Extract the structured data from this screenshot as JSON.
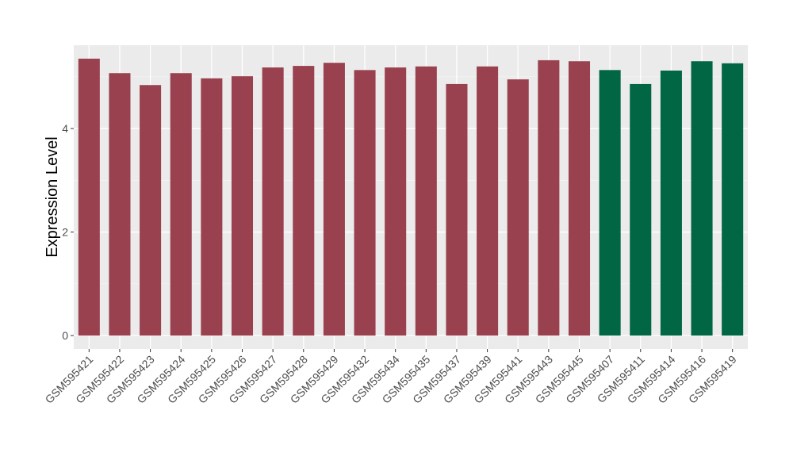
{
  "chart_data": {
    "type": "bar",
    "title": "",
    "xlabel": "",
    "ylabel": "Expression Level",
    "ylim": [
      -0.26,
      5.61
    ],
    "yticks": [
      0,
      2,
      4
    ],
    "grid": true,
    "legend": "none",
    "categories": [
      "GSM595421",
      "GSM595422",
      "GSM595423",
      "GSM595424",
      "GSM595425",
      "GSM595426",
      "GSM595427",
      "GSM595428",
      "GSM595429",
      "GSM595432",
      "GSM595434",
      "GSM595435",
      "GSM595437",
      "GSM595439",
      "GSM595441",
      "GSM595443",
      "GSM595445",
      "GSM595407",
      "GSM595411",
      "GSM595414",
      "GSM595416",
      "GSM595419"
    ],
    "values": [
      5.35,
      5.07,
      4.84,
      5.07,
      4.97,
      5.01,
      5.18,
      5.21,
      5.27,
      5.13,
      5.18,
      5.2,
      4.86,
      5.2,
      4.95,
      5.32,
      5.3,
      5.13,
      4.86,
      5.12,
      5.3,
      5.26
    ],
    "groups": [
      0,
      0,
      0,
      0,
      0,
      0,
      0,
      0,
      0,
      0,
      0,
      0,
      0,
      0,
      0,
      0,
      0,
      1,
      1,
      1,
      1,
      1
    ],
    "group_colors": [
      "#9a4150",
      "#006644"
    ],
    "panel_background": "#ebebeb"
  }
}
